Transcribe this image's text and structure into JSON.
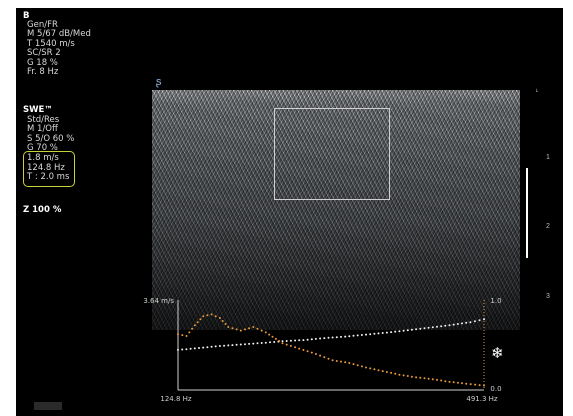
{
  "mode_b": {
    "title": "B",
    "lines": [
      "Gen/FR",
      "M 5/67 dB/Med",
      "T 1540 m/s",
      "SC/SR 2",
      "G 18 %",
      "Fr. 8 Hz"
    ]
  },
  "mode_swe": {
    "title": "SWE™",
    "lines": [
      "Std/Res",
      "M 1/Off",
      "S 5/O 60 %",
      "G 70 %"
    ]
  },
  "readout": {
    "velocity": "1.8 m/s",
    "frequency": "124.8 Hz",
    "period": "T : 2.0 ms"
  },
  "zoom": "Z  100  %",
  "depth_ticks": [
    "1",
    "2",
    "3"
  ],
  "chart_data": {
    "type": "line",
    "x_start_label": "124.8 Hz",
    "x_end_label": "491.3 Hz",
    "y_left_label": "3.64 m/s",
    "y_right_top": "1.0",
    "y_right_bottom": "0.0",
    "xlim": [
      124.8,
      491.3
    ],
    "ylim_left": [
      0,
      3.64
    ],
    "ylim_right": [
      0,
      1
    ],
    "series": [
      {
        "color": "#f0f0f0",
        "axis": "left",
        "x": [
          124.8,
          150,
          175,
          200,
          225,
          250,
          275,
          300,
          325,
          350,
          375,
          400,
          425,
          450,
          475,
          491.3
        ],
        "y": [
          1.62,
          1.7,
          1.78,
          1.84,
          1.9,
          1.97,
          2.02,
          2.1,
          2.16,
          2.24,
          2.32,
          2.42,
          2.52,
          2.62,
          2.74,
          2.86
        ]
      },
      {
        "color": "#e79a3b",
        "axis": "right",
        "x": [
          124.8,
          135,
          145,
          155,
          165,
          175,
          185,
          200,
          215,
          230,
          250,
          270,
          290,
          310,
          330,
          350,
          370,
          390,
          410,
          430,
          450,
          470,
          491.3
        ],
        "y": [
          0.62,
          0.6,
          0.72,
          0.82,
          0.84,
          0.8,
          0.7,
          0.66,
          0.7,
          0.64,
          0.52,
          0.46,
          0.4,
          0.33,
          0.3,
          0.25,
          0.21,
          0.17,
          0.14,
          0.12,
          0.09,
          0.07,
          0.05
        ]
      }
    ]
  },
  "icons": {
    "freeze": "snowflake-icon",
    "probe_orientation": "orientation-marker-icon"
  }
}
